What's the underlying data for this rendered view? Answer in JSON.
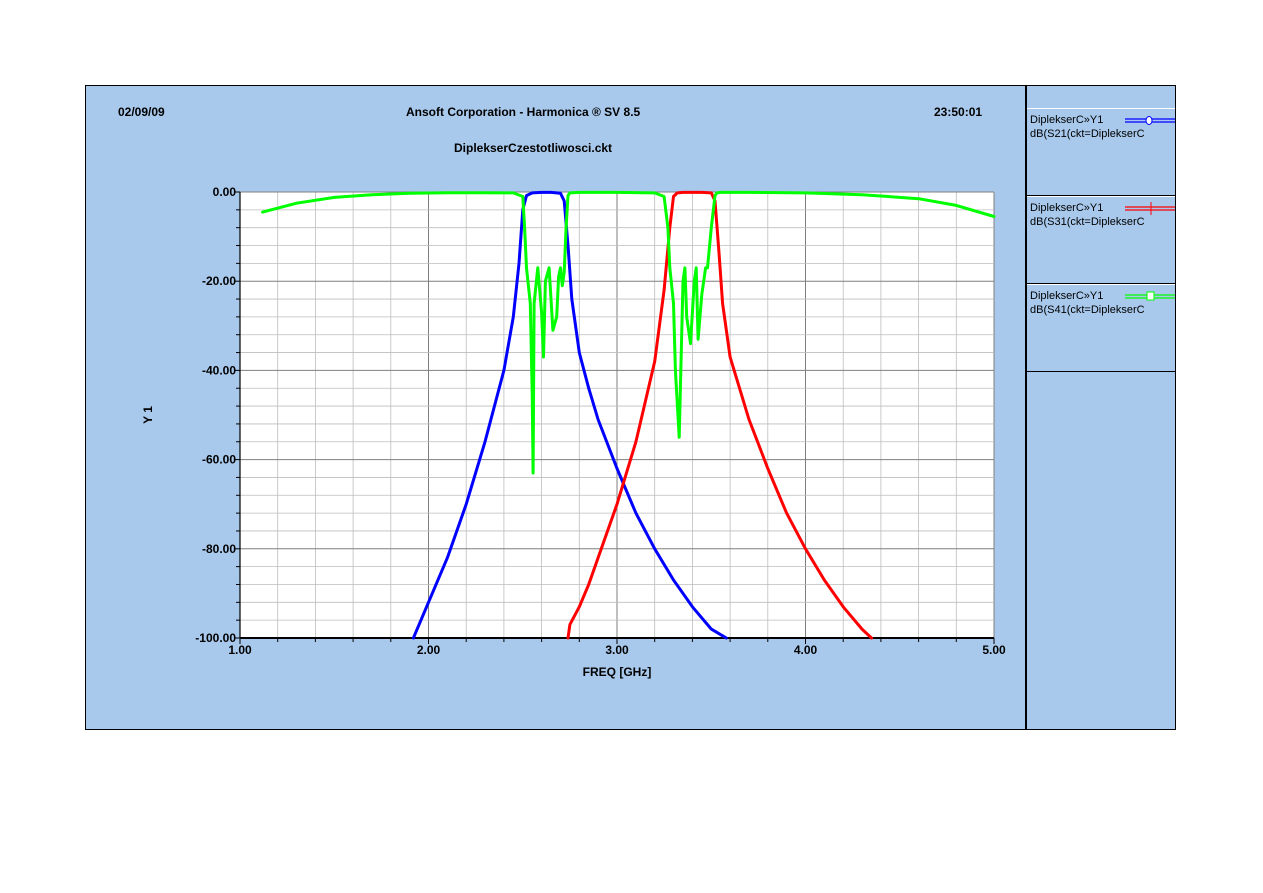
{
  "header": {
    "date": "02/09/09",
    "title": "Ansoft Corporation - Harmonica ® SV 8.5",
    "time": "23:50:01",
    "filename": "DiplekserCzestotliwosci.ckt"
  },
  "legend": [
    {
      "name": "DiplekserC»Y1",
      "expr": "dB(S21(ckt=DiplekserC",
      "color": "#0000ff",
      "marker": "circle"
    },
    {
      "name": "DiplekserC»Y1",
      "expr": "dB(S31(ckt=DiplekserC",
      "color": "#ff0000",
      "marker": "plus"
    },
    {
      "name": "DiplekserC»Y1",
      "expr": "dB(S41(ckt=DiplekserC",
      "color": "#00ff00",
      "marker": "square"
    }
  ],
  "chart_data": {
    "type": "line",
    "xlabel": "FREQ [GHz]",
    "ylabel": "Y 1",
    "xlim": [
      1.0,
      5.0
    ],
    "ylim": [
      -100,
      0
    ],
    "xticks": [
      "1.00",
      "2.00",
      "3.00",
      "4.00",
      "5.00"
    ],
    "yticks": [
      "0.00",
      "-20.00",
      "-40.00",
      "-60.00",
      "-80.00",
      "-100.00"
    ],
    "grid": true,
    "series": [
      {
        "name": "dB(S21(ckt=DiplekserC",
        "color": "#0000ff",
        "x": [
          1.92,
          2.0,
          2.1,
          2.2,
          2.3,
          2.4,
          2.45,
          2.48,
          2.5,
          2.52,
          2.55,
          2.6,
          2.65,
          2.7,
          2.72,
          2.74,
          2.76,
          2.8,
          2.85,
          2.9,
          3.0,
          3.1,
          3.2,
          3.3,
          3.4,
          3.5,
          3.58
        ],
        "y": [
          -100,
          -92,
          -82,
          -70,
          -56,
          -40,
          -28,
          -16,
          -4,
          -0.8,
          -0.2,
          -0.1,
          -0.1,
          -0.3,
          -2,
          -12,
          -24,
          -36,
          -44,
          -51,
          -62,
          -72,
          -80,
          -87,
          -93,
          -98,
          -100
        ]
      },
      {
        "name": "dB(S31(ckt=DiplekserC",
        "color": "#ff0000",
        "x": [
          2.74,
          2.75,
          2.8,
          2.85,
          2.9,
          3.0,
          3.1,
          3.2,
          3.25,
          3.28,
          3.3,
          3.32,
          3.35,
          3.4,
          3.45,
          3.5,
          3.52,
          3.54,
          3.56,
          3.6,
          3.7,
          3.8,
          3.9,
          4.0,
          4.1,
          4.2,
          4.3,
          4.35
        ],
        "y": [
          -100,
          -97,
          -93,
          -88,
          -82,
          -70,
          -56,
          -38,
          -22,
          -8,
          -1,
          -0.2,
          -0.1,
          -0.1,
          -0.1,
          -0.2,
          -2,
          -13,
          -25,
          -37,
          -51,
          -62,
          -72,
          -80,
          -87,
          -93,
          -98,
          -100
        ]
      },
      {
        "name": "dB(S41(ckt=DiplekserC",
        "color": "#00ff00",
        "x": [
          1.12,
          1.3,
          1.5,
          1.7,
          1.9,
          2.1,
          2.3,
          2.45,
          2.5,
          2.51,
          2.52,
          2.53,
          2.54,
          2.55,
          2.555,
          2.56,
          2.58,
          2.6,
          2.61,
          2.62,
          2.64,
          2.66,
          2.68,
          2.69,
          2.7,
          2.71,
          2.72,
          2.73,
          2.74,
          2.75,
          2.8,
          3.0,
          3.2,
          3.25,
          3.27,
          3.28,
          3.29,
          3.3,
          3.31,
          3.33,
          3.35,
          3.36,
          3.37,
          3.39,
          3.41,
          3.42,
          3.43,
          3.45,
          3.47,
          3.48,
          3.5,
          3.52,
          3.53,
          3.55,
          3.7,
          4.0,
          4.3,
          4.6,
          4.8,
          5.0
        ],
        "y": [
          -4.5,
          -2.5,
          -1.2,
          -0.6,
          -0.3,
          -0.15,
          -0.15,
          -0.2,
          -1,
          -8,
          -17,
          -21,
          -25,
          -45,
          -63,
          -25,
          -17,
          -27,
          -37,
          -20,
          -17,
          -31,
          -28,
          -19,
          -17,
          -21,
          -18,
          -8,
          -0.8,
          -0.2,
          -0.1,
          -0.1,
          -0.2,
          -1,
          -8,
          -17,
          -21,
          -25,
          -40,
          -55,
          -20,
          -17,
          -28,
          -34,
          -20,
          -17,
          -33,
          -23,
          -17,
          -17,
          -8,
          -0.8,
          -0.2,
          -0.1,
          -0.1,
          -0.2,
          -0.6,
          -1.5,
          -3,
          -5.5
        ]
      }
    ]
  }
}
